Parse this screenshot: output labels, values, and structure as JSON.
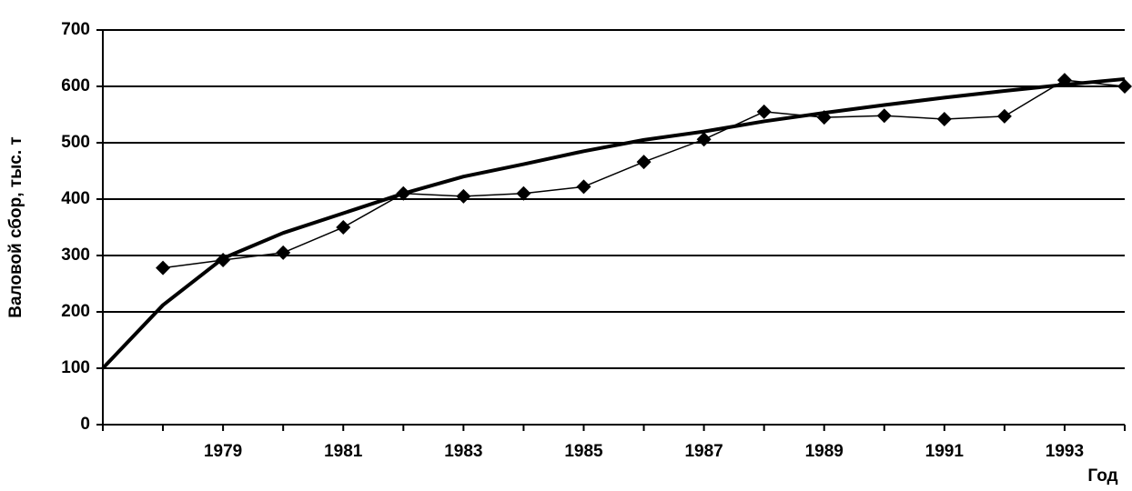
{
  "chart_data": {
    "type": "line",
    "x": [
      1977,
      1978,
      1979,
      1980,
      1981,
      1982,
      1983,
      1984,
      1985,
      1986,
      1987,
      1988,
      1989,
      1990,
      1991,
      1992,
      1993,
      1994
    ],
    "series": [
      {
        "color": "#000000",
        "line_width": 1.5,
        "marker": "diamond",
        "values": [
          null,
          278,
          292,
          305,
          350,
          410,
          405,
          410,
          422,
          466,
          506,
          555,
          545,
          548,
          542,
          547,
          611,
          600
        ]
      },
      {
        "color": "#000000",
        "line_width": 4,
        "marker": "none",
        "values": [
          100,
          212,
          295,
          340,
          375,
          410,
          440,
          462,
          485,
          505,
          520,
          538,
          553,
          567,
          580,
          592,
          603,
          613
        ]
      }
    ],
    "xlim": [
      1977,
      1994
    ],
    "xticks": [
      1979,
      1981,
      1983,
      1985,
      1987,
      1989,
      1991,
      1993
    ],
    "ylim": [
      0,
      700
    ],
    "yticks": [
      0,
      100,
      200,
      300,
      400,
      500,
      600,
      700
    ],
    "grid": true,
    "y_label": "Валовой сбор, тыс. т",
    "x_label": "Год"
  }
}
